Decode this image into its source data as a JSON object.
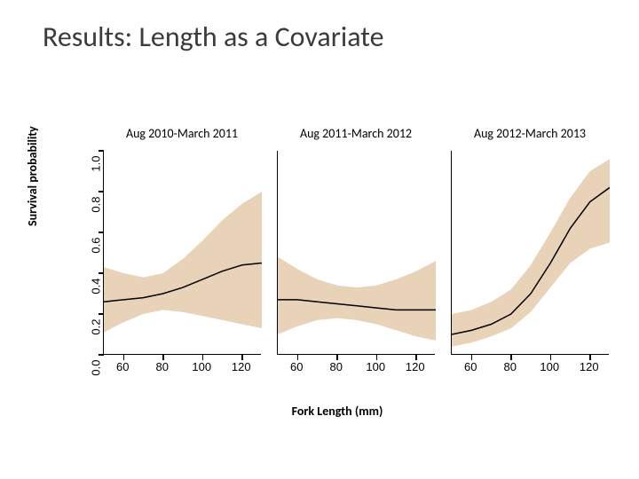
{
  "title": "Results: Length as a Covariate",
  "ylabel": "Survival probability",
  "xlabel": "Fork Length (mm)",
  "ylim": [
    0.0,
    1.0
  ],
  "yticks": [
    0.0,
    0.2,
    0.4,
    0.6,
    0.8,
    1.0
  ],
  "xlim": [
    50,
    130
  ],
  "xticks": [
    60,
    80,
    100,
    120
  ],
  "band_color": "#e8d3b8",
  "line_color": "#000000",
  "axis_color": "#000000",
  "background_color": "#ffffff",
  "line_width": 1.5,
  "title_fontsize": 32,
  "label_fontsize": 14,
  "tick_fontsize": 13,
  "panel_title_fontsize": 14,
  "panels": [
    {
      "title": "Aug 2010-March 2011",
      "x": [
        50,
        60,
        70,
        80,
        90,
        100,
        110,
        120,
        130
      ],
      "line": [
        0.26,
        0.27,
        0.28,
        0.3,
        0.33,
        0.37,
        0.41,
        0.44,
        0.45
      ],
      "lower": [
        0.11,
        0.16,
        0.2,
        0.22,
        0.21,
        0.19,
        0.17,
        0.15,
        0.13
      ],
      "upper": [
        0.43,
        0.4,
        0.38,
        0.4,
        0.47,
        0.56,
        0.66,
        0.74,
        0.8
      ]
    },
    {
      "title": "Aug 2011-March 2012",
      "x": [
        50,
        60,
        70,
        80,
        90,
        100,
        110,
        120,
        130
      ],
      "line": [
        0.27,
        0.27,
        0.26,
        0.25,
        0.24,
        0.23,
        0.22,
        0.22,
        0.22
      ],
      "lower": [
        0.1,
        0.14,
        0.17,
        0.18,
        0.17,
        0.15,
        0.12,
        0.09,
        0.07
      ],
      "upper": [
        0.48,
        0.42,
        0.37,
        0.34,
        0.33,
        0.34,
        0.37,
        0.41,
        0.46
      ]
    },
    {
      "title": "Aug 2012-March 2013",
      "x": [
        50,
        60,
        70,
        80,
        90,
        100,
        110,
        120,
        130
      ],
      "line": [
        0.1,
        0.12,
        0.15,
        0.2,
        0.3,
        0.45,
        0.62,
        0.75,
        0.82
      ],
      "lower": [
        0.04,
        0.06,
        0.09,
        0.13,
        0.21,
        0.33,
        0.45,
        0.52,
        0.55
      ],
      "upper": [
        0.2,
        0.22,
        0.26,
        0.32,
        0.44,
        0.6,
        0.77,
        0.9,
        0.96
      ]
    }
  ]
}
